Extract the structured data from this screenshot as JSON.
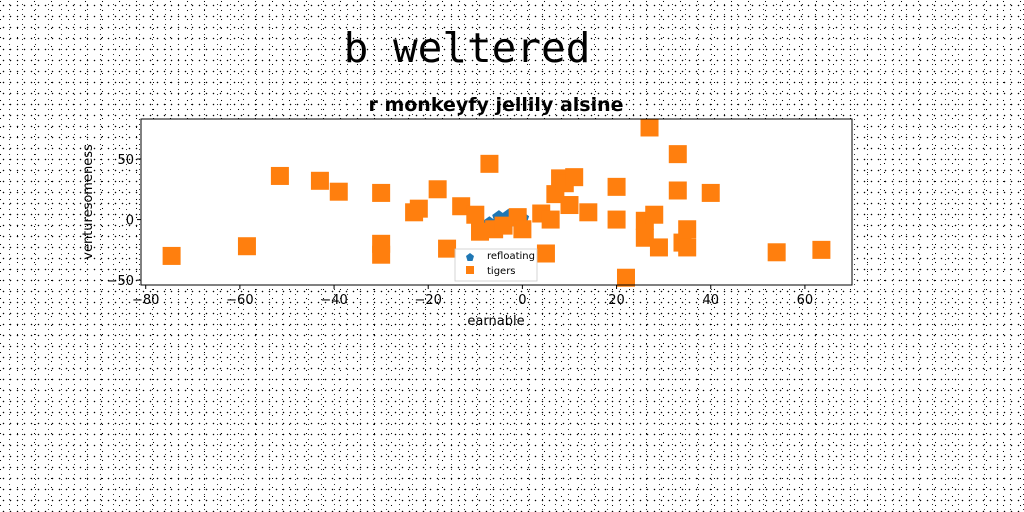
{
  "suptitle": "b weltered",
  "chart_data": {
    "type": "scatter",
    "title": "r monkeyfy jellily alsine",
    "xlabel": "earnable",
    "ylabel": "venturesomeness",
    "xlim": [
      -81,
      70
    ],
    "ylim": [
      -54,
      83
    ],
    "xticks": [
      -80,
      -60,
      -40,
      -20,
      0,
      20,
      40,
      60
    ],
    "yticks": [
      -50,
      0,
      50
    ],
    "legend_position": "lower center",
    "grid": false,
    "series": [
      {
        "name": "refloating",
        "marker": "pentagon",
        "color": "#1f77b4",
        "points": [
          [
            -5,
            2
          ],
          [
            -3,
            3
          ],
          [
            0,
            1
          ],
          [
            -7,
            -3
          ],
          [
            -2,
            -1
          ]
        ]
      },
      {
        "name": "tigers",
        "marker": "square",
        "color": "#ff7f0e",
        "points": [
          [
            -74.5,
            -30
          ],
          [
            -58.5,
            -22
          ],
          [
            -51.5,
            36
          ],
          [
            -43,
            32
          ],
          [
            -39,
            23
          ],
          [
            -30,
            22
          ],
          [
            -30,
            -20
          ],
          [
            -30,
            -29
          ],
          [
            -23,
            6
          ],
          [
            -22,
            9
          ],
          [
            -18,
            25
          ],
          [
            -16,
            -24
          ],
          [
            -13,
            11
          ],
          [
            -10,
            4
          ],
          [
            -7,
            46
          ],
          [
            -9,
            -10
          ],
          [
            -6,
            -8
          ],
          [
            -4,
            -5
          ],
          [
            -1,
            2
          ],
          [
            0,
            -8
          ],
          [
            4,
            5
          ],
          [
            5,
            -28
          ],
          [
            6,
            0
          ],
          [
            7,
            21
          ],
          [
            8,
            34
          ],
          [
            9,
            30
          ],
          [
            10,
            12
          ],
          [
            11,
            35
          ],
          [
            14,
            6
          ],
          [
            20,
            27
          ],
          [
            20,
            0
          ],
          [
            22,
            -48
          ],
          [
            26,
            -1
          ],
          [
            26,
            -15
          ],
          [
            27,
            76
          ],
          [
            28,
            4
          ],
          [
            29,
            -23
          ],
          [
            33,
            54
          ],
          [
            33,
            24
          ],
          [
            34,
            -19
          ],
          [
            35,
            -8
          ],
          [
            35,
            -23
          ],
          [
            40,
            22
          ],
          [
            54,
            -27
          ],
          [
            63.5,
            -25
          ]
        ]
      }
    ]
  }
}
